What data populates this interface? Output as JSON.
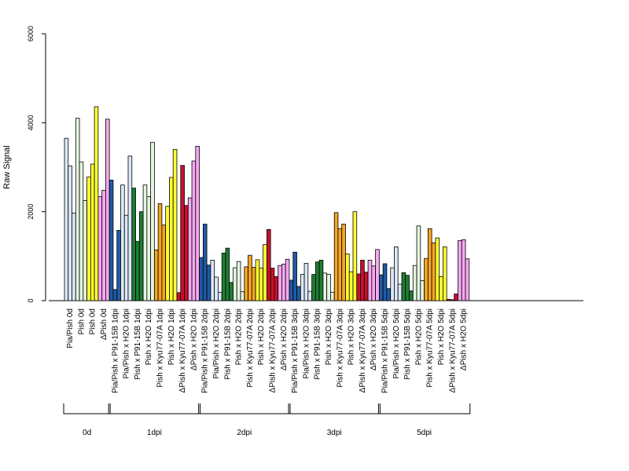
{
  "chart_data": {
    "type": "bar",
    "title": "",
    "xlabel": "",
    "ylabel": "Raw Signal",
    "ylim": [
      0,
      6000
    ],
    "yticks": [
      0,
      2000,
      4000,
      6000
    ],
    "grid": false,
    "legend": "none",
    "colors": {
      "lightblue": "#dbe8f7",
      "blue": "#1f5aa6",
      "lightgreen": "#e5f5e0",
      "green": "#1e7d32",
      "yellow": "#ffff33",
      "orange": "#f5a623",
      "red": "#c8102e",
      "pink": "#f7a8f0"
    },
    "categories": [
      "Pia/Pish 0d",
      "Pish 0d",
      "Pish 0d",
      "ΔPish 0d",
      "Pia/Pish x P91-15B 1dpi",
      "Pia/Pish x H2O 1dpi",
      "Pish x P91-15B 1dpi",
      "Pish x H2O 1dpi",
      "Pish x Kyu77-07A 1dpi",
      "Pish x H2O 1dpi",
      "ΔPish x Kyu77-07A 1dpi",
      "ΔPish x H2O 1dpi",
      "Pia/Pish x P91-15B 2dpi",
      "Pia/Pish x H2O 2dpi",
      "Pish x P91-15B 2dpi",
      "Pish x H2O 2dpi",
      "Pish x Kyu77-07A 2dpi",
      "Pish x H2O 2dpi",
      "ΔPish x Kyu77-07A 2dpi",
      "ΔPish x H2O 2dpi",
      "Pia/Pish x P91-15B 3dpi",
      "Pia/Pish x H2O 3dpi",
      "Pish x P91-15B 3dpi",
      "Pish x H2O 3dpi",
      "Pish x Kyu77-07A 3dpi",
      "Pish x H2O 3dpi",
      "ΔPish x Kyu77-07A 3dpi",
      "ΔPish x H2O 3dpi",
      "Pia/Pish x P91-15B 5dpi",
      "Pia/Pish x H2O 5dpi",
      "Pish x P91-15B 5dpi",
      "Pish x H2O 5dpi",
      "Pish x Kyu77-07A 5dpi",
      "Pish x H2O 5dpi",
      "ΔPish x Kyu77-07A 5dpi",
      "ΔPish x H2O 5dpi"
    ],
    "category_colors": [
      "lightblue",
      "lightgreen",
      "yellow",
      "pink",
      "blue",
      "lightblue",
      "green",
      "lightgreen",
      "orange",
      "yellow",
      "red",
      "pink",
      "blue",
      "lightblue",
      "green",
      "lightgreen",
      "orange",
      "yellow",
      "red",
      "pink",
      "blue",
      "lightblue",
      "green",
      "lightgreen",
      "orange",
      "yellow",
      "red",
      "pink",
      "blue",
      "lightblue",
      "green",
      "lightgreen",
      "orange",
      "yellow",
      "red",
      "pink"
    ],
    "replicates": [
      [
        3650,
        3030,
        1970
      ],
      [
        4100,
        3120,
        2250
      ],
      [
        2780,
        3070,
        4360
      ],
      [
        2340,
        2480,
        4080
      ],
      [
        2710,
        250,
        1580
      ],
      [
        2600,
        1920,
        3250
      ],
      [
        2530,
        1330,
        2000
      ],
      [
        2600,
        2340,
        3560
      ],
      [
        1140,
        2180,
        1700
      ],
      [
        2120,
        2770,
        3400
      ],
      [
        180,
        3040,
        2140
      ],
      [
        2310,
        3140,
        3470
      ],
      [
        970,
        1720,
        800
      ],
      [
        910,
        530,
        190
      ],
      [
        1070,
        1180,
        410
      ],
      [
        740,
        880,
        200
      ],
      [
        760,
        1020,
        750
      ],
      [
        920,
        730,
        1260
      ],
      [
        1600,
        730,
        540
      ],
      [
        790,
        820,
        930
      ],
      [
        460,
        1090,
        320
      ],
      [
        590,
        840,
        210
      ],
      [
        590,
        870,
        910
      ],
      [
        620,
        590,
        190
      ],
      [
        1980,
        1620,
        1720
      ],
      [
        1050,
        650,
        2000
      ],
      [
        600,
        910,
        640
      ],
      [
        910,
        780,
        1150
      ],
      [
        580,
        830,
        270
      ],
      [
        740,
        1210,
        370
      ],
      [
        630,
        570,
        220
      ],
      [
        790,
        1680,
        450
      ],
      [
        950,
        1620,
        1300
      ],
      [
        1410,
        540,
        1210
      ],
      [
        30,
        20,
        150
      ],
      [
        1350,
        1370,
        940
      ]
    ],
    "groups": [
      {
        "label": "0d",
        "start": 0,
        "end": 3
      },
      {
        "label": "1dpi",
        "start": 4,
        "end": 11
      },
      {
        "label": "2dpi",
        "start": 12,
        "end": 19
      },
      {
        "label": "3dpi",
        "start": 20,
        "end": 27
      },
      {
        "label": "5dpi",
        "start": 28,
        "end": 35
      }
    ]
  }
}
